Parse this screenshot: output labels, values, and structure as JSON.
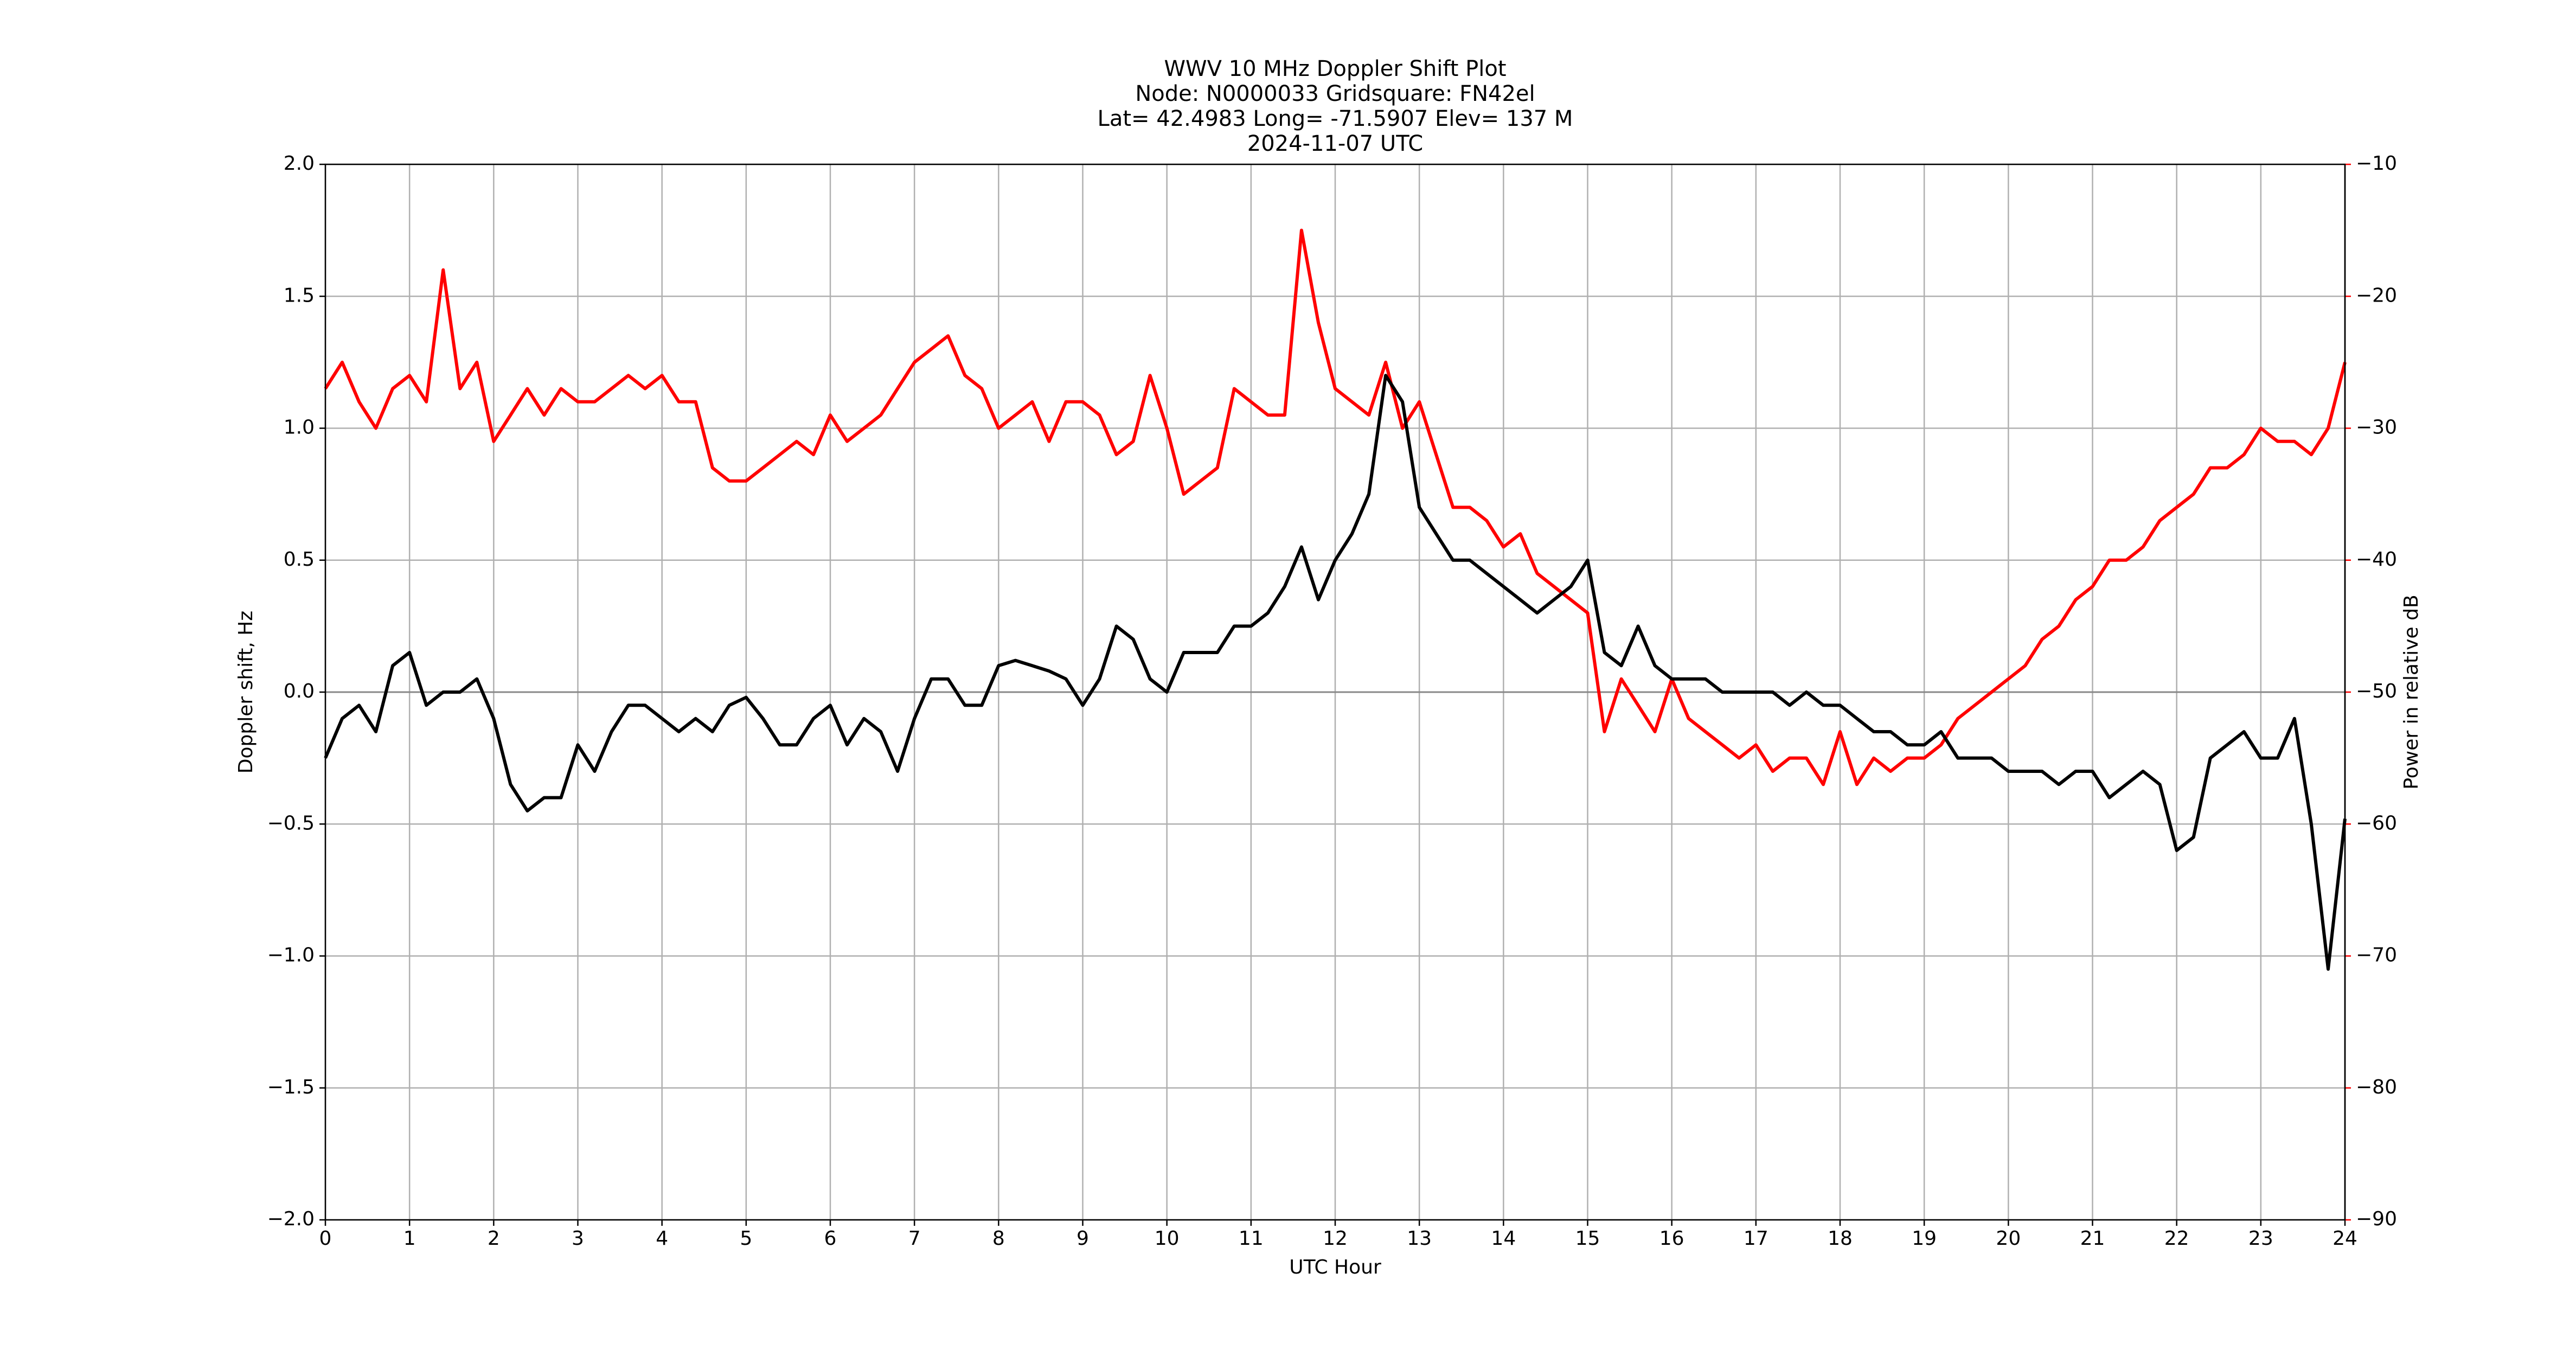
{
  "chart_data": {
    "type": "line",
    "title": [
      "WWV 10 MHz Doppler Shift Plot",
      "Node:  N0000033     Gridsquare:  FN42el",
      "Lat= 42.4983    Long= -71.5907    Elev= 137 M",
      "2024-11-07  UTC"
    ],
    "x_label": "UTC Hour",
    "y_label": "Doppler shift, Hz",
    "y2_label": "Power in relative dB",
    "x": [
      0,
      0.2,
      0.4,
      0.6,
      0.8,
      1,
      1.2,
      1.4,
      1.6,
      1.8,
      2,
      2.2,
      2.4,
      2.6,
      2.8,
      3,
      3.2,
      3.4,
      3.6,
      3.8,
      4,
      4.2,
      4.4,
      4.6,
      4.8,
      5,
      5.2,
      5.4,
      5.6,
      5.8,
      6,
      6.2,
      6.4,
      6.6,
      6.8,
      7,
      7.2,
      7.4,
      7.6,
      7.8,
      8,
      8.2,
      8.4,
      8.6,
      8.8,
      9,
      9.2,
      9.4,
      9.6,
      9.8,
      10,
      10.2,
      10.4,
      10.6,
      10.8,
      11,
      11.2,
      11.4,
      11.6,
      11.8,
      12,
      12.2,
      12.4,
      12.6,
      12.8,
      13,
      13.2,
      13.4,
      13.6,
      13.8,
      14,
      14.2,
      14.4,
      14.6,
      14.8,
      15,
      15.2,
      15.4,
      15.6,
      15.8,
      16,
      16.2,
      16.4,
      16.6,
      16.8,
      17,
      17.2,
      17.4,
      17.6,
      17.8,
      18,
      18.2,
      18.4,
      18.6,
      18.8,
      19,
      19.2,
      19.4,
      19.6,
      19.8,
      20,
      20.2,
      20.4,
      20.6,
      20.8,
      21,
      21.2,
      21.4,
      21.6,
      21.8,
      22,
      22.2,
      22.4,
      22.6,
      22.8,
      23,
      23.2,
      23.4,
      23.6,
      23.8,
      24
    ],
    "series": [
      {
        "color": "#000000",
        "values": [
          -0.25,
          -0.1,
          -0.05,
          -0.15,
          0.1,
          0.15,
          -0.05,
          0,
          0,
          0.05,
          -0.1,
          -0.35,
          -0.45,
          -0.4,
          -0.4,
          -0.2,
          -0.3,
          -0.15,
          -0.05,
          -0.05,
          -0.1,
          -0.15,
          -0.1,
          -0.15,
          -0.05,
          -0.02,
          -0.1,
          -0.2,
          -0.2,
          -0.1,
          -0.05,
          -0.2,
          -0.1,
          -0.15,
          -0.3,
          -0.1,
          0.05,
          0.05,
          -0.05,
          -0.05,
          0.1,
          0.12,
          0.1,
          0.08,
          0.05,
          -0.05,
          0.05,
          0.25,
          0.2,
          0.05,
          0,
          0.15,
          0.15,
          0.15,
          0.25,
          0.25,
          0.3,
          0.4,
          0.55,
          0.35,
          0.5,
          0.6,
          0.75,
          1.2,
          1.1,
          0.7,
          0.6,
          0.5,
          0.5,
          0.45,
          0.4,
          0.35,
          0.3,
          0.35,
          0.4,
          0.5,
          0.15,
          0.1,
          0.25,
          0.1,
          0.05,
          0.05,
          0.05,
          0,
          0,
          0,
          0,
          -0.05,
          0,
          -0.05,
          -0.05,
          -0.1,
          -0.15,
          -0.15,
          -0.2,
          -0.2,
          -0.15,
          -0.25,
          -0.25,
          -0.25,
          -0.3,
          -0.3,
          -0.3,
          -0.35,
          -0.3,
          -0.3,
          -0.4,
          -0.35,
          -0.3,
          -0.35,
          -0.6,
          -0.55,
          -0.25,
          -0.2,
          -0.15,
          -0.25,
          -0.25,
          -0.1,
          -0.5,
          -1.05,
          -0.48
        ]
      },
      {
        "color": "#ff0000",
        "axis": "y2",
        "values": [
          -27,
          -25,
          -28,
          -30,
          -27,
          -26,
          -28,
          -18,
          -27,
          -25,
          -31,
          -29,
          -27,
          -29,
          -27,
          -28,
          -28,
          -27,
          -26,
          -27,
          -26,
          -28,
          -28,
          -33,
          -34,
          -34,
          -33,
          -32,
          -31,
          -32,
          -29,
          -31,
          -30,
          -29,
          -27,
          -25,
          -24,
          -23,
          -26,
          -27,
          -30,
          -29,
          -28,
          -31,
          -28,
          -28,
          -29,
          -32,
          -31,
          -26,
          -30,
          -35,
          -34,
          -33,
          -27,
          -28,
          -29,
          -29,
          -15,
          -22,
          -27,
          -28,
          -29,
          -25,
          -30,
          -28,
          -32,
          -36,
          -36,
          -37,
          -39,
          -38,
          -41,
          -42,
          -43,
          -44,
          -53,
          -49,
          -51,
          -53,
          -49,
          -52,
          -53,
          -54,
          -55,
          -54,
          -56,
          -55,
          -55,
          -57,
          -53,
          -57,
          -55,
          -56,
          -55,
          -55,
          -54,
          -52,
          -51,
          -50,
          -49,
          -48,
          -46,
          -45,
          -43,
          -42,
          -40,
          -40,
          -39,
          -37,
          -36,
          -35,
          -33,
          -33,
          -32,
          -30,
          -31,
          -31,
          -32,
          -30,
          -25
        ]
      }
    ],
    "xlim": [
      0,
      24
    ],
    "xticks": [
      0,
      1,
      2,
      3,
      4,
      5,
      6,
      7,
      8,
      9,
      10,
      11,
      12,
      13,
      14,
      15,
      16,
      17,
      18,
      19,
      20,
      21,
      22,
      23,
      24
    ],
    "ylim": [
      -2,
      2
    ],
    "yticks": [
      {
        "value": -2,
        "label": "−2.0"
      },
      {
        "value": -1.5,
        "label": "−1.5"
      },
      {
        "value": -1,
        "label": "−1.0"
      },
      {
        "value": -0.5,
        "label": "−0.5"
      },
      {
        "value": 0,
        "label": "0.0"
      },
      {
        "value": 0.5,
        "label": "0.5"
      },
      {
        "value": 1,
        "label": "1.0"
      },
      {
        "value": 1.5,
        "label": "1.5"
      },
      {
        "value": 2,
        "label": "2.0"
      }
    ],
    "y2lim": [
      -90,
      -10
    ],
    "y2ticks": [
      {
        "value": -90,
        "label": "−90"
      },
      {
        "value": -80,
        "label": "−80"
      },
      {
        "value": -70,
        "label": "−70"
      },
      {
        "value": -60,
        "label": "−60"
      },
      {
        "value": -50,
        "label": "−50"
      },
      {
        "value": -40,
        "label": "−40"
      },
      {
        "value": -30,
        "label": "−30"
      },
      {
        "value": -20,
        "label": "−20"
      },
      {
        "value": -10,
        "label": "−10"
      }
    ],
    "y2_color": "#ff0000",
    "grid": true
  }
}
